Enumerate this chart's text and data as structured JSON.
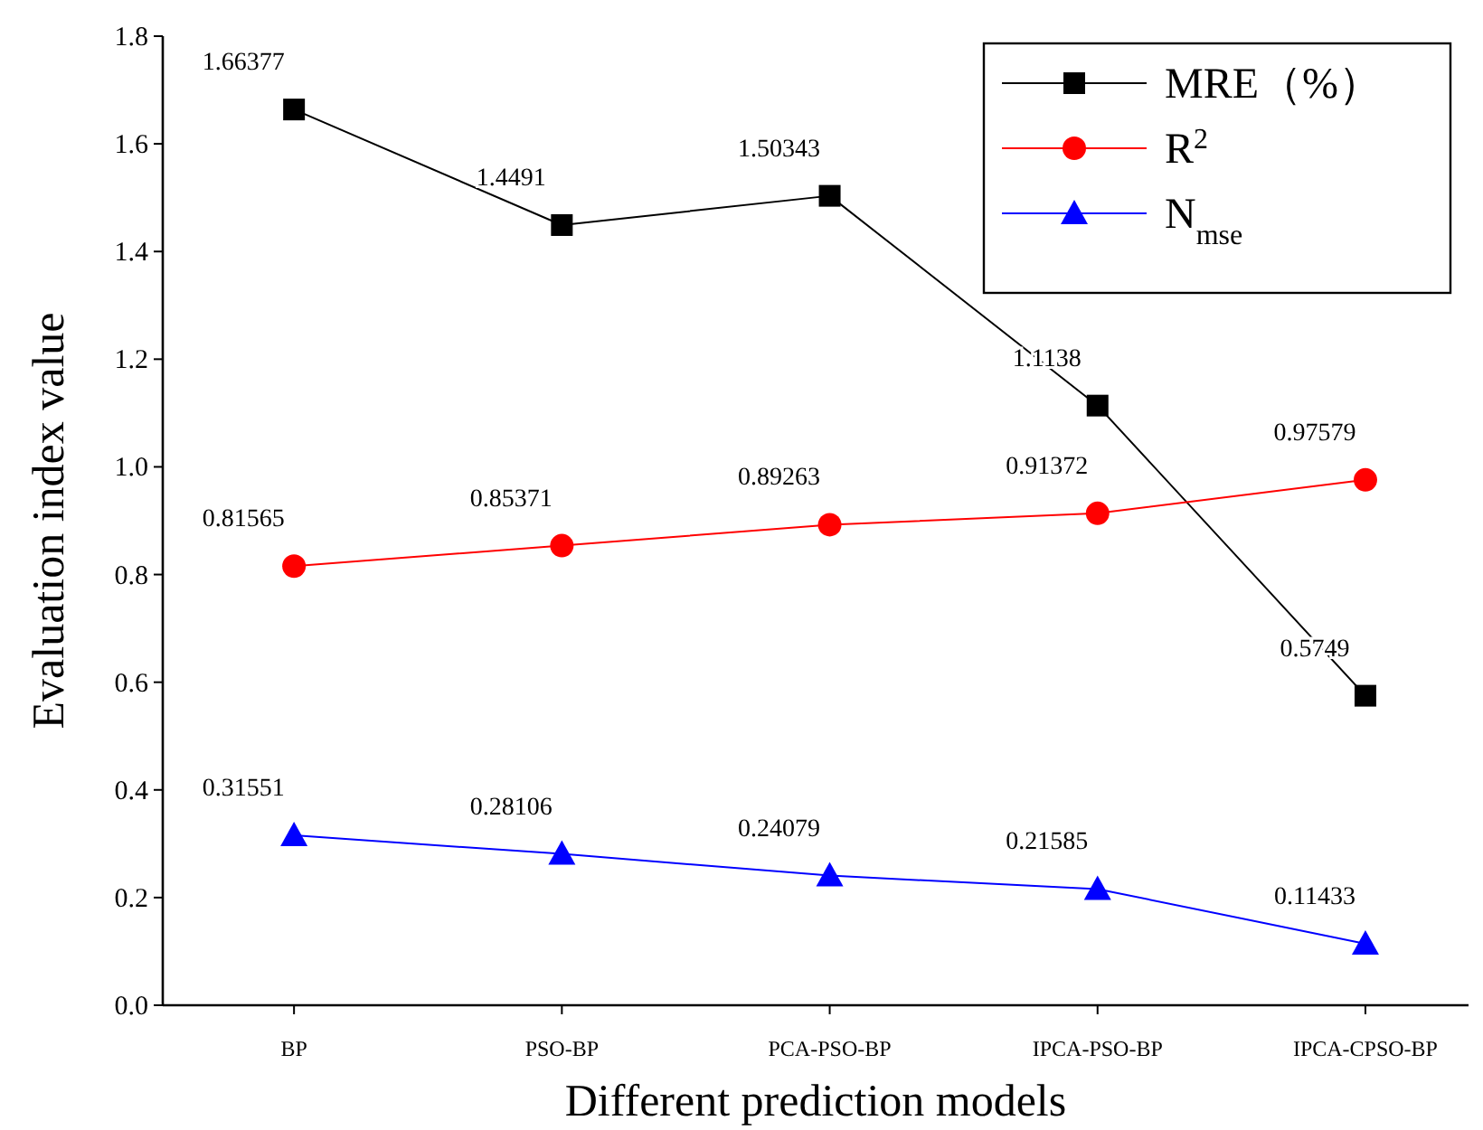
{
  "chart_data": {
    "type": "line",
    "xlabel": "Different prediction models",
    "ylabel": "Evaluation index value",
    "categories": [
      "BP",
      "PSO-BP",
      "PCA-PSO-BP",
      "IPCA-PSO-BP",
      "IPCA-CPSO-BP"
    ],
    "series": [
      {
        "name": "MRE（%）",
        "color": "#000000",
        "marker": "square",
        "values": [
          1.66377,
          1.4491,
          1.50343,
          1.1138,
          0.5749
        ]
      },
      {
        "name": "R$^{2}$",
        "color": "#ff0000",
        "marker": "circle",
        "values": [
          0.81565,
          0.85371,
          0.89263,
          0.91372,
          0.97579
        ]
      },
      {
        "name": "N$_{mse}$",
        "color": "#0000ff",
        "marker": "triangle",
        "values": [
          0.31551,
          0.28106,
          0.24079,
          0.21585,
          0.11433
        ]
      }
    ],
    "ylim": [
      0,
      1.8
    ],
    "yticks": [
      {
        "value": 0,
        "label": "0.0"
      },
      {
        "value": 0.2,
        "label": "0.2"
      },
      {
        "value": 0.4,
        "label": "0.4"
      },
      {
        "value": 0.6,
        "label": "0.6"
      },
      {
        "value": 0.8,
        "label": "0.8"
      },
      {
        "value": 1.0,
        "label": "1.0"
      },
      {
        "value": 1.2,
        "label": "1.2"
      },
      {
        "value": 1.4,
        "label": "1.4"
      },
      {
        "value": 1.6,
        "label": "1.6"
      },
      {
        "value": 1.8,
        "label": "1.8"
      }
    ],
    "data_labels": true,
    "legend": "top right",
    "grid": false,
    "line_style": "solid"
  }
}
